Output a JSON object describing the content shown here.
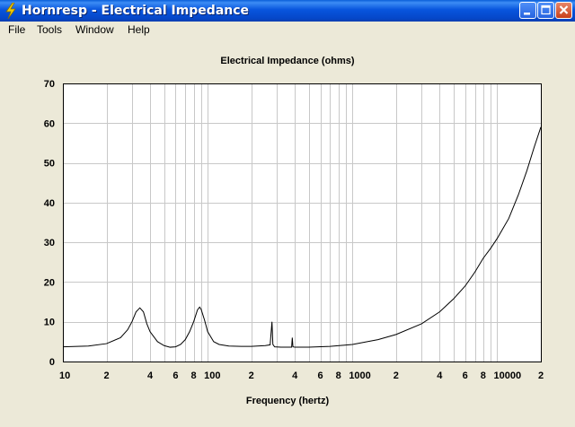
{
  "window": {
    "title": "Hornresp - Electrical Impedance",
    "icon": "lightning-bolt-icon"
  },
  "menu": [
    {
      "label": "File"
    },
    {
      "label": "Tools"
    },
    {
      "label": "Window"
    },
    {
      "label": "Help"
    }
  ],
  "colors": {
    "titlebar": "#0a5fd8",
    "plot_background": "#ffffff",
    "gridline": "#c8c8c8",
    "curve": "#000000",
    "client_background": "#ece9d8"
  },
  "chart_data": {
    "type": "line",
    "title": "Electrical Impedance (ohms)",
    "xlabel": "Frequency (hertz)",
    "ylabel": "",
    "x_scale": "log",
    "xlim": [
      10,
      20000
    ],
    "ylim": [
      0,
      70
    ],
    "grid": true,
    "x_tick_labels": [
      "10",
      "2",
      "4",
      "6",
      "8",
      "100",
      "2",
      "4",
      "6",
      "8",
      "1000",
      "2",
      "4",
      "6",
      "8",
      "10000",
      "2"
    ],
    "x_tick_values": [
      10,
      20,
      40,
      60,
      80,
      100,
      200,
      400,
      600,
      800,
      1000,
      2000,
      4000,
      6000,
      8000,
      10000,
      20000
    ],
    "y_ticks": [
      0,
      10,
      20,
      30,
      40,
      50,
      60,
      70
    ],
    "series": [
      {
        "x": [
          10,
          15,
          20,
          25,
          28,
          30,
          32,
          34,
          36,
          38,
          40,
          45,
          50,
          55,
          60,
          65,
          70,
          75,
          80,
          85,
          88,
          90,
          95,
          100,
          110,
          120,
          140,
          170,
          200,
          250,
          270,
          278,
          282,
          290,
          320,
          350,
          380,
          384,
          388,
          400,
          500,
          700,
          1000,
          1500,
          2000,
          3000,
          4000,
          5000,
          6000,
          7000,
          8000,
          9000,
          10000,
          12000,
          14000,
          16000,
          18000,
          20000
        ],
        "y": [
          3.7,
          3.9,
          4.5,
          6.0,
          8.0,
          10.0,
          12.5,
          13.5,
          12.5,
          9.5,
          7.5,
          5.0,
          4.0,
          3.6,
          3.7,
          4.3,
          5.5,
          7.5,
          10.0,
          13.0,
          13.7,
          13.2,
          10.5,
          7.5,
          5.0,
          4.3,
          3.9,
          3.8,
          3.8,
          4.0,
          4.2,
          10.0,
          4.3,
          3.7,
          3.6,
          3.6,
          3.6,
          6.0,
          3.7,
          3.6,
          3.6,
          3.8,
          4.3,
          5.5,
          6.8,
          9.5,
          12.5,
          15.8,
          19.0,
          22.5,
          26.0,
          28.5,
          31.0,
          36.0,
          42.0,
          48.0,
          54.0,
          59.0
        ]
      }
    ]
  }
}
